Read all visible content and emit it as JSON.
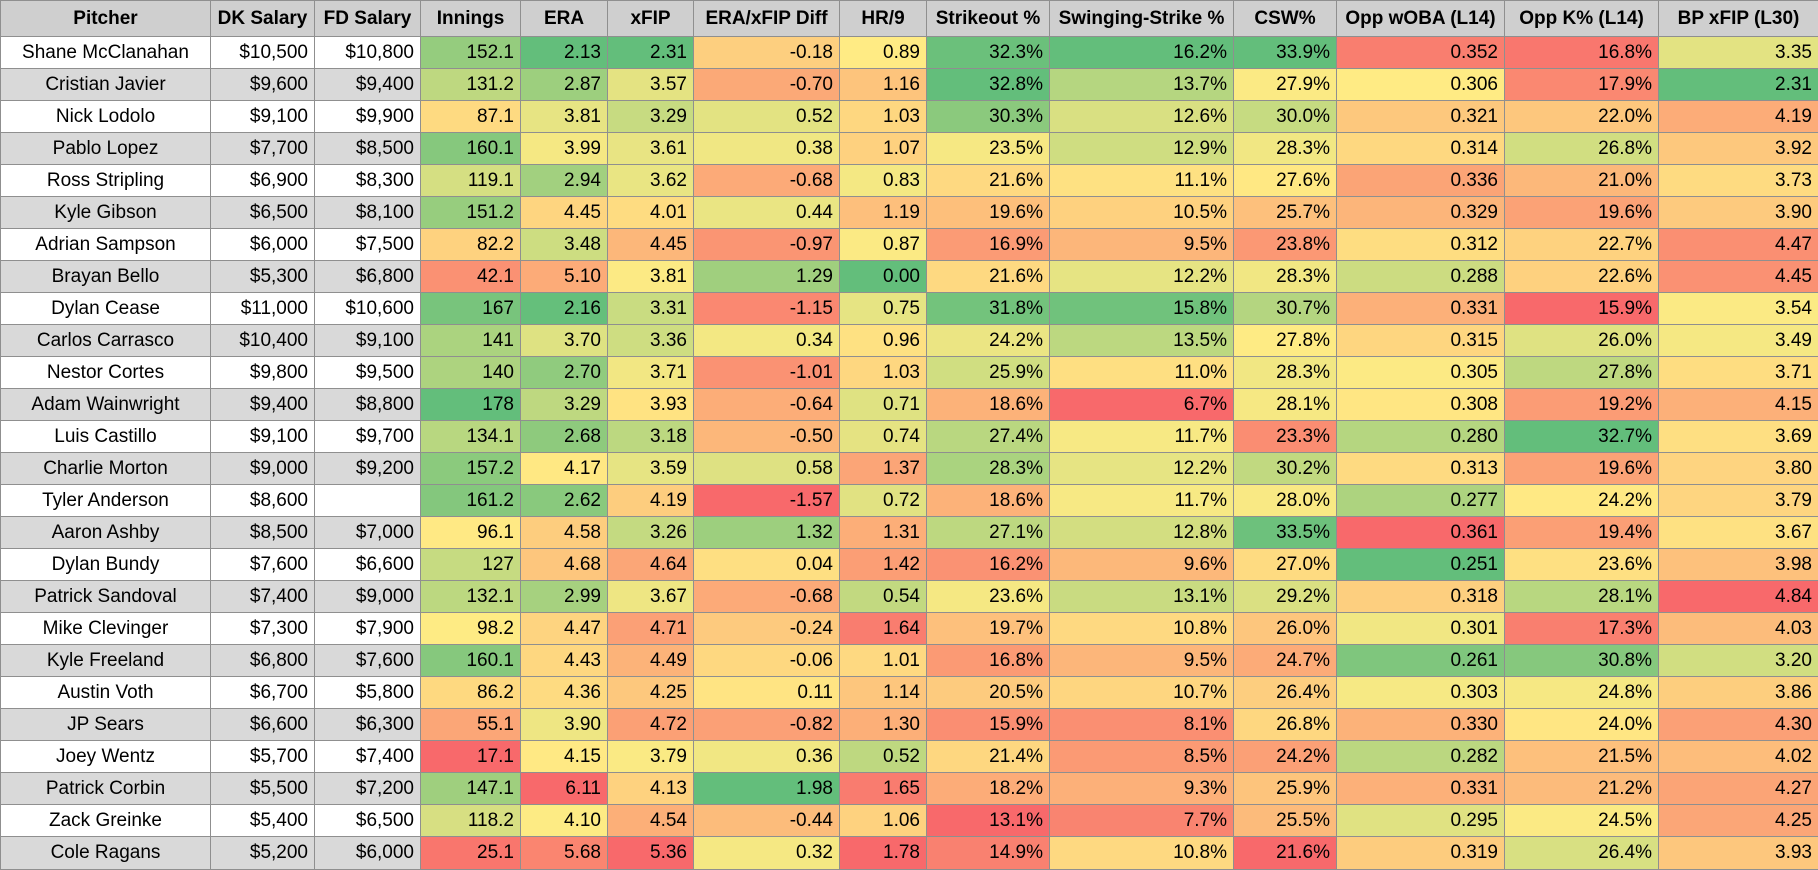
{
  "columns": [
    "Pitcher",
    "DK Salary",
    "FD Salary",
    "Innings",
    "ERA",
    "xFIP",
    "ERA/xFIP Diff",
    "HR/9",
    "Strikeout %",
    "Swinging-Strike %",
    "CSW%",
    "Opp wOBA (L14)",
    "Opp K% (L14)",
    "BP xFIP (L30)"
  ],
  "rows": [
    [
      "Shane McClanahan",
      "$10,500",
      "$10,800",
      "152.1",
      "2.13",
      "2.31",
      "-0.18",
      "0.89",
      "32.3%",
      "16.2%",
      "33.9%",
      "0.352",
      "16.8%",
      "3.35"
    ],
    [
      "Cristian Javier",
      "$9,600",
      "$9,400",
      "131.2",
      "2.87",
      "3.57",
      "-0.70",
      "1.16",
      "32.8%",
      "13.7%",
      "27.9%",
      "0.306",
      "17.9%",
      "2.31"
    ],
    [
      "Nick Lodolo",
      "$9,100",
      "$9,900",
      "87.1",
      "3.81",
      "3.29",
      "0.52",
      "1.03",
      "30.3%",
      "12.6%",
      "30.0%",
      "0.321",
      "22.0%",
      "4.19"
    ],
    [
      "Pablo Lopez",
      "$7,700",
      "$8,500",
      "160.1",
      "3.99",
      "3.61",
      "0.38",
      "1.07",
      "23.5%",
      "12.9%",
      "28.3%",
      "0.314",
      "26.8%",
      "3.92"
    ],
    [
      "Ross Stripling",
      "$6,900",
      "$8,300",
      "119.1",
      "2.94",
      "3.62",
      "-0.68",
      "0.83",
      "21.6%",
      "11.1%",
      "27.6%",
      "0.336",
      "21.0%",
      "3.73"
    ],
    [
      "Kyle Gibson",
      "$6,500",
      "$8,100",
      "151.2",
      "4.45",
      "4.01",
      "0.44",
      "1.19",
      "19.6%",
      "10.5%",
      "25.7%",
      "0.329",
      "19.6%",
      "3.90"
    ],
    [
      "Adrian Sampson",
      "$6,000",
      "$7,500",
      "82.2",
      "3.48",
      "4.45",
      "-0.97",
      "0.87",
      "16.9%",
      "9.5%",
      "23.8%",
      "0.312",
      "22.7%",
      "4.47"
    ],
    [
      "Brayan Bello",
      "$5,300",
      "$6,800",
      "42.1",
      "5.10",
      "3.81",
      "1.29",
      "0.00",
      "21.6%",
      "12.2%",
      "28.3%",
      "0.288",
      "22.6%",
      "4.45"
    ],
    [
      "Dylan Cease",
      "$11,000",
      "$10,600",
      "167",
      "2.16",
      "3.31",
      "-1.15",
      "0.75",
      "31.8%",
      "15.8%",
      "30.7%",
      "0.331",
      "15.9%",
      "3.54"
    ],
    [
      "Carlos Carrasco",
      "$10,400",
      "$9,100",
      "141",
      "3.70",
      "3.36",
      "0.34",
      "0.96",
      "24.2%",
      "13.5%",
      "27.8%",
      "0.315",
      "26.0%",
      "3.49"
    ],
    [
      "Nestor Cortes",
      "$9,800",
      "$9,500",
      "140",
      "2.70",
      "3.71",
      "-1.01",
      "1.03",
      "25.9%",
      "11.0%",
      "28.3%",
      "0.305",
      "27.8%",
      "3.71"
    ],
    [
      "Adam Wainwright",
      "$9,400",
      "$8,800",
      "178",
      "3.29",
      "3.93",
      "-0.64",
      "0.71",
      "18.6%",
      "6.7%",
      "28.1%",
      "0.308",
      "19.2%",
      "4.15"
    ],
    [
      "Luis Castillo",
      "$9,100",
      "$9,700",
      "134.1",
      "2.68",
      "3.18",
      "-0.50",
      "0.74",
      "27.4%",
      "11.7%",
      "23.3%",
      "0.280",
      "32.7%",
      "3.69"
    ],
    [
      "Charlie Morton",
      "$9,000",
      "$9,200",
      "157.2",
      "4.17",
      "3.59",
      "0.58",
      "1.37",
      "28.3%",
      "12.2%",
      "30.2%",
      "0.313",
      "19.6%",
      "3.80"
    ],
    [
      "Tyler Anderson",
      "$8,600",
      "",
      "161.2",
      "2.62",
      "4.19",
      "-1.57",
      "0.72",
      "18.6%",
      "11.7%",
      "28.0%",
      "0.277",
      "24.2%",
      "3.79"
    ],
    [
      "Aaron Ashby",
      "$8,500",
      "$7,000",
      "96.1",
      "4.58",
      "3.26",
      "1.32",
      "1.31",
      "27.1%",
      "12.8%",
      "33.5%",
      "0.361",
      "19.4%",
      "3.67"
    ],
    [
      "Dylan Bundy",
      "$7,600",
      "$6,600",
      "127",
      "4.68",
      "4.64",
      "0.04",
      "1.42",
      "16.2%",
      "9.6%",
      "27.0%",
      "0.251",
      "23.6%",
      "3.98"
    ],
    [
      "Patrick Sandoval",
      "$7,400",
      "$9,000",
      "132.1",
      "2.99",
      "3.67",
      "-0.68",
      "0.54",
      "23.6%",
      "13.1%",
      "29.2%",
      "0.318",
      "28.1%",
      "4.84"
    ],
    [
      "Mike Clevinger",
      "$7,300",
      "$7,900",
      "98.2",
      "4.47",
      "4.71",
      "-0.24",
      "1.64",
      "19.7%",
      "10.8%",
      "26.0%",
      "0.301",
      "17.3%",
      "4.03"
    ],
    [
      "Kyle Freeland",
      "$6,800",
      "$7,600",
      "160.1",
      "4.43",
      "4.49",
      "-0.06",
      "1.01",
      "16.8%",
      "9.5%",
      "24.7%",
      "0.261",
      "30.8%",
      "3.20"
    ],
    [
      "Austin Voth",
      "$6,700",
      "$5,800",
      "86.2",
      "4.36",
      "4.25",
      "0.11",
      "1.14",
      "20.5%",
      "10.7%",
      "26.4%",
      "0.303",
      "24.8%",
      "3.86"
    ],
    [
      "JP Sears",
      "$6,600",
      "$6,300",
      "55.1",
      "3.90",
      "4.72",
      "-0.82",
      "1.30",
      "15.9%",
      "8.1%",
      "26.8%",
      "0.330",
      "24.0%",
      "4.30"
    ],
    [
      "Joey Wentz",
      "$5,700",
      "$7,400",
      "17.1",
      "4.15",
      "3.79",
      "0.36",
      "0.52",
      "21.4%",
      "8.5%",
      "24.2%",
      "0.282",
      "21.5%",
      "4.02"
    ],
    [
      "Patrick Corbin",
      "$5,500",
      "$7,200",
      "147.1",
      "6.11",
      "4.13",
      "1.98",
      "1.65",
      "18.2%",
      "9.3%",
      "25.9%",
      "0.331",
      "21.2%",
      "4.27"
    ],
    [
      "Zack Greinke",
      "$5,400",
      "$6,500",
      "118.2",
      "4.10",
      "4.54",
      "-0.44",
      "1.06",
      "13.1%",
      "7.7%",
      "25.5%",
      "0.295",
      "24.5%",
      "4.25"
    ],
    [
      "Cole Ragans",
      "$5,200",
      "$6,000",
      "25.1",
      "5.68",
      "5.36",
      "0.32",
      "1.78",
      "14.9%",
      "10.8%",
      "21.6%",
      "0.319",
      "26.4%",
      "3.93"
    ]
  ],
  "scales": {
    "good": "#63be7b",
    "mid": "#ffeb84",
    "bad": "#f8696b",
    "higher_is_better": [
      false,
      false,
      true,
      true,
      true,
      true,
      false
    ],
    "higher_is_better_cols": {
      "3": true,
      "4": false,
      "5": false,
      "6": true,
      "7": false,
      "8": true,
      "9": true,
      "10": true,
      "11": false,
      "12": true,
      "13": false
    }
  }
}
